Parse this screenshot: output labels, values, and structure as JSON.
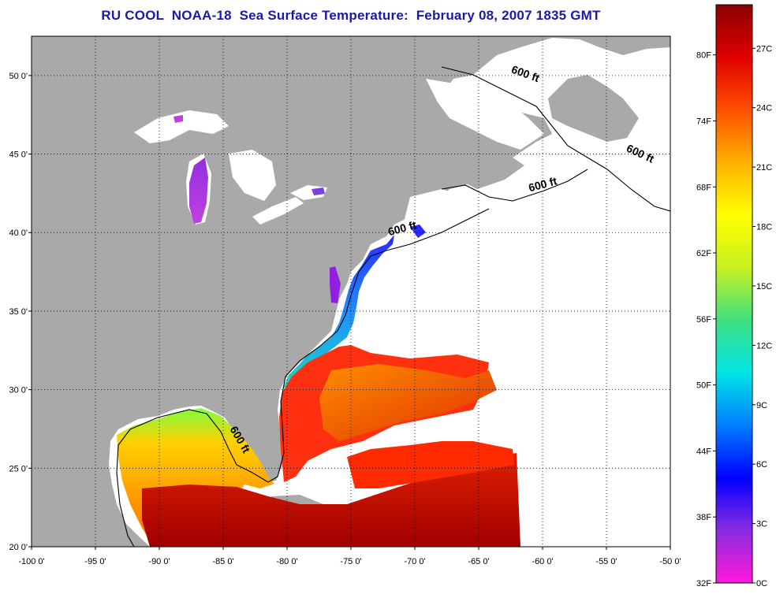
{
  "title": "RU COOL  NOAA-18  Sea Surface Temperature:  February 08, 2007 1835 GMT",
  "map": {
    "lon_range": [
      -100,
      -50
    ],
    "lat_range": [
      20,
      52.5
    ],
    "lon_ticks": [
      "-100 0'",
      "-95 0'",
      "-90 0'",
      "-85 0'",
      "-80 0'",
      "-75 0'",
      "-70 0'",
      "-65 0'",
      "-60 0'",
      "-55 0'",
      "-50 0'"
    ],
    "lon_tick_values": [
      -100,
      -95,
      -90,
      -85,
      -80,
      -75,
      -70,
      -65,
      -60,
      -55,
      -50
    ],
    "lat_ticks": [
      "20 0'",
      "25 0'",
      "30 0'",
      "35 0'",
      "40 0'",
      "45 0'",
      "50 0'"
    ],
    "lat_tick_values": [
      20,
      25,
      30,
      35,
      40,
      45,
      50
    ],
    "grid": "dotted",
    "land_color": "#a9a9a9",
    "ocean_color": "#ffffff",
    "contour_label": "600 ft",
    "contour_labels": [
      {
        "text": "600 ft",
        "lon": -62.5,
        "lat": 50.2,
        "angle": 20
      },
      {
        "text": "600 ft",
        "lon": -53.5,
        "lat": 45.2,
        "angle": 25
      },
      {
        "text": "600 ft",
        "lon": -61.0,
        "lat": 42.6,
        "angle": -15
      },
      {
        "text": "600 ft",
        "lon": -72.0,
        "lat": 39.8,
        "angle": -15
      },
      {
        "text": "600 ft",
        "lon": -84.5,
        "lat": 27.5,
        "angle": 60
      }
    ]
  },
  "colorbar": {
    "left_labels": [
      "32F",
      "38F",
      "44F",
      "50F",
      "56F",
      "62F",
      "68F",
      "74F",
      "80F"
    ],
    "right_labels": [
      "0C",
      "3C",
      "6C",
      "9C",
      "12C",
      "15C",
      "18C",
      "21C",
      "24C",
      "27C"
    ],
    "colors": [
      "#ff1ad9",
      "#8a2be2",
      "#0000ff",
      "#0080ff",
      "#00e5e5",
      "#40e080",
      "#c8f020",
      "#ffff00",
      "#ffb000",
      "#ff5000",
      "#e00000",
      "#8b0000"
    ]
  }
}
